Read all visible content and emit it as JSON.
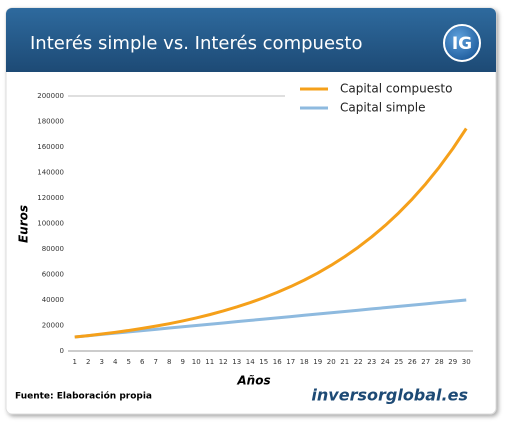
{
  "chart_data": {
    "type": "line",
    "title": "Interés simple vs. Interés compuesto",
    "logo": "IG",
    "source": "Fuente: Elaboración propia",
    "website": "inversorglobal.es",
    "x_label": "Años",
    "y_label": "Euros",
    "categories": [
      1,
      2,
      3,
      4,
      5,
      6,
      7,
      8,
      9,
      10,
      11,
      12,
      13,
      14,
      15,
      16,
      17,
      18,
      19,
      20,
      21,
      22,
      23,
      24,
      25,
      26,
      27,
      28,
      29,
      30
    ],
    "series": [
      {
        "name": "Capital compuesto",
        "color": "#f5a01a",
        "values": [
          11000,
          12100,
          13310,
          14641,
          16105,
          17716,
          19487,
          21436,
          23579,
          25937,
          28531,
          31384,
          34523,
          37975,
          41772,
          45950,
          50545,
          55599,
          61159,
          67275,
          74002,
          81403,
          89543,
          98497,
          108347,
          119182,
          131100,
          144210,
          158631,
          174494
        ]
      },
      {
        "name": "Capital simple",
        "color": "#8ebadf",
        "values": [
          11000,
          12000,
          13000,
          14000,
          15000,
          16000,
          17000,
          18000,
          19000,
          20000,
          21000,
          22000,
          23000,
          24000,
          25000,
          26000,
          27000,
          28000,
          29000,
          30000,
          31000,
          32000,
          33000,
          34000,
          35000,
          36000,
          37000,
          38000,
          39000,
          40000
        ]
      }
    ],
    "ylim": [
      0,
      200000
    ],
    "yticks": [
      0,
      20000,
      40000,
      60000,
      80000,
      100000,
      120000,
      140000,
      160000,
      180000,
      200000
    ],
    "grid": false,
    "legend": "top-right"
  }
}
